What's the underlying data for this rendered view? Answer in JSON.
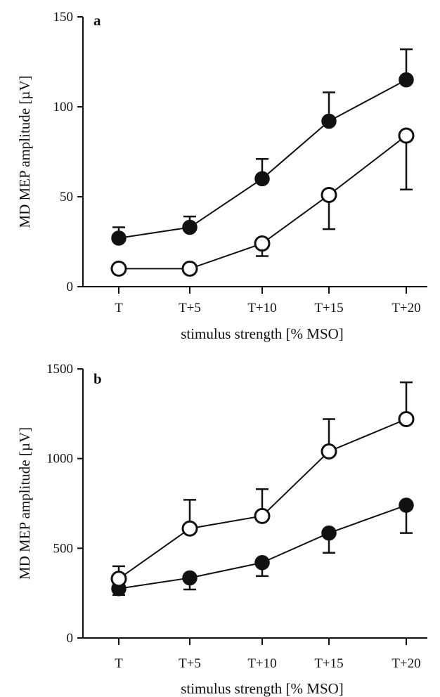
{
  "chart_data": [
    {
      "type": "line",
      "panel_label": "a",
      "categories": [
        "T",
        "T+5",
        "T+10",
        "T+15",
        "T+20"
      ],
      "xlabel": "stimulus strength [% MSO]",
      "ylabel": "MD MEP amplitude [µV]",
      "ylim": [
        0,
        150
      ],
      "yticks": [
        "0",
        "50",
        "100",
        "150"
      ],
      "grid": false,
      "series": [
        {
          "marker": "filled-circle",
          "values": [
            27,
            33,
            60,
            92,
            115
          ],
          "error_bar_direction": "up",
          "error_upper": [
            33,
            39,
            71,
            108,
            132
          ]
        },
        {
          "marker": "open-circle",
          "values": [
            10,
            10,
            24,
            51,
            84
          ],
          "error_bar_direction": "down",
          "error_lower": [
            10,
            10,
            17,
            32,
            54
          ]
        }
      ]
    },
    {
      "type": "line",
      "panel_label": "b",
      "categories": [
        "T",
        "T+5",
        "T+10",
        "T+15",
        "T+20"
      ],
      "xlabel": "stimulus strength [% MSO]",
      "ylabel": "MD MEP amplitude [µV]",
      "ylim": [
        0,
        1500
      ],
      "yticks": [
        "0",
        "500",
        "1000",
        "1500"
      ],
      "grid": false,
      "series": [
        {
          "marker": "filled-circle",
          "values": [
            275,
            335,
            420,
            585,
            740
          ],
          "error_bar_direction": "down",
          "error_lower": [
            240,
            270,
            345,
            475,
            585
          ]
        },
        {
          "marker": "open-circle",
          "values": [
            330,
            610,
            680,
            1040,
            1220
          ],
          "error_bar_direction": "up",
          "error_upper": [
            400,
            770,
            830,
            1220,
            1425
          ]
        }
      ]
    }
  ]
}
